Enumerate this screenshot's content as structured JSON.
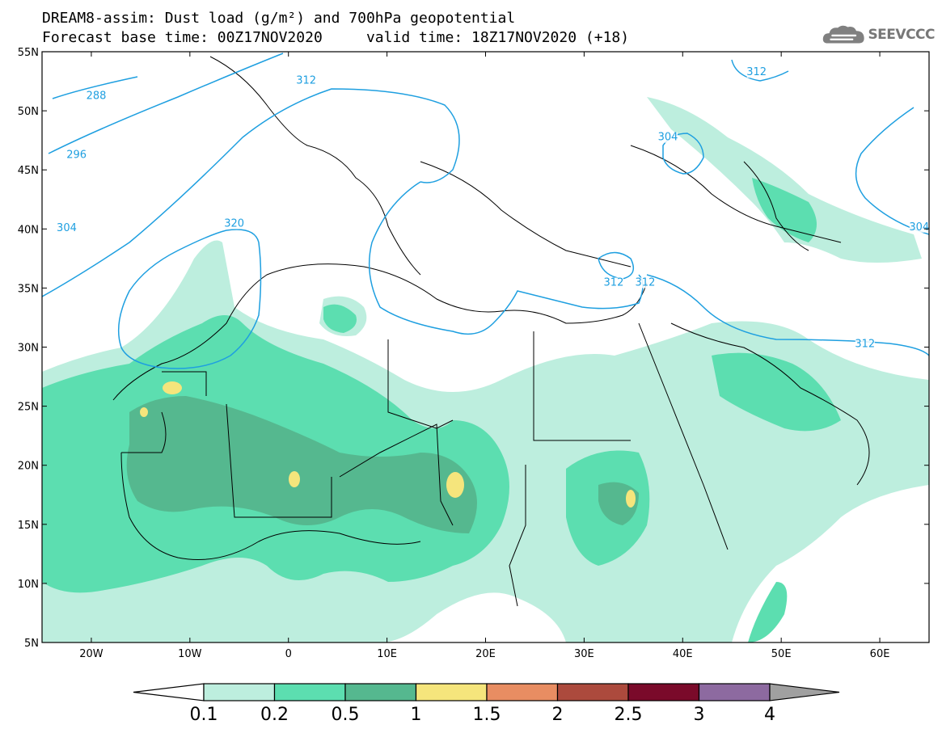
{
  "title": {
    "line1": "DREAM8-assim: Dust load (g/m²) and 700hPa geopotential",
    "line2": "Forecast base time: 00Z17NOV2020     valid time: 18Z17NOV2020 (+18)"
  },
  "logo": {
    "text": "SEEVCCC",
    "icon": "cloud-logo-icon"
  },
  "map": {
    "lon_range": [
      -25,
      65
    ],
    "lat_range": [
      5,
      55
    ],
    "lon_ticks": [
      {
        "v": -20,
        "label": "20W"
      },
      {
        "v": -10,
        "label": "10W"
      },
      {
        "v": 0,
        "label": "0"
      },
      {
        "v": 10,
        "label": "10E"
      },
      {
        "v": 20,
        "label": "20E"
      },
      {
        "v": 30,
        "label": "30E"
      },
      {
        "v": 40,
        "label": "40E"
      },
      {
        "v": 50,
        "label": "50E"
      },
      {
        "v": 60,
        "label": "60E"
      }
    ],
    "lat_ticks": [
      {
        "v": 5,
        "label": "5N"
      },
      {
        "v": 10,
        "label": "10N"
      },
      {
        "v": 15,
        "label": "15N"
      },
      {
        "v": 20,
        "label": "20N"
      },
      {
        "v": 25,
        "label": "25N"
      },
      {
        "v": 30,
        "label": "30N"
      },
      {
        "v": 35,
        "label": "35N"
      },
      {
        "v": 40,
        "label": "40N"
      },
      {
        "v": 45,
        "label": "45N"
      },
      {
        "v": 50,
        "label": "50N"
      },
      {
        "v": 55,
        "label": "55N"
      }
    ],
    "contour_labels": [
      {
        "text": "288",
        "lon": -19.5,
        "lat": 51.0
      },
      {
        "text": "296",
        "lon": -21.5,
        "lat": 46.0
      },
      {
        "text": "304",
        "lon": -22.5,
        "lat": 39.8
      },
      {
        "text": "320",
        "lon": -5.5,
        "lat": 40.2
      },
      {
        "text": "312",
        "lon": 1.8,
        "lat": 52.3
      },
      {
        "text": "304",
        "lon": 38.5,
        "lat": 47.5
      },
      {
        "text": "312",
        "lon": 47.5,
        "lat": 53.0
      },
      {
        "text": "312",
        "lon": 33.0,
        "lat": 35.2
      },
      {
        "text": "312",
        "lon": 36.2,
        "lat": 35.2
      },
      {
        "text": "312",
        "lon": 58.5,
        "lat": 30.0
      },
      {
        "text": "304",
        "lon": 64.0,
        "lat": 39.9
      }
    ],
    "colors": {
      "contour": "#1e9fe0",
      "border": "#000000"
    }
  },
  "colorbar": {
    "colors": [
      "#bdeede",
      "#5cdeb0",
      "#55b88f",
      "#f5e57c",
      "#e88d62",
      "#ac4a3d",
      "#7a0a2a",
      "#8d6aa0"
    ],
    "under_color": "#ffffff",
    "over_color": "#a0a0a0",
    "labels": [
      "0.1",
      "0.2",
      "0.5",
      "1",
      "1.5",
      "2",
      "2.5",
      "3",
      "4"
    ]
  }
}
